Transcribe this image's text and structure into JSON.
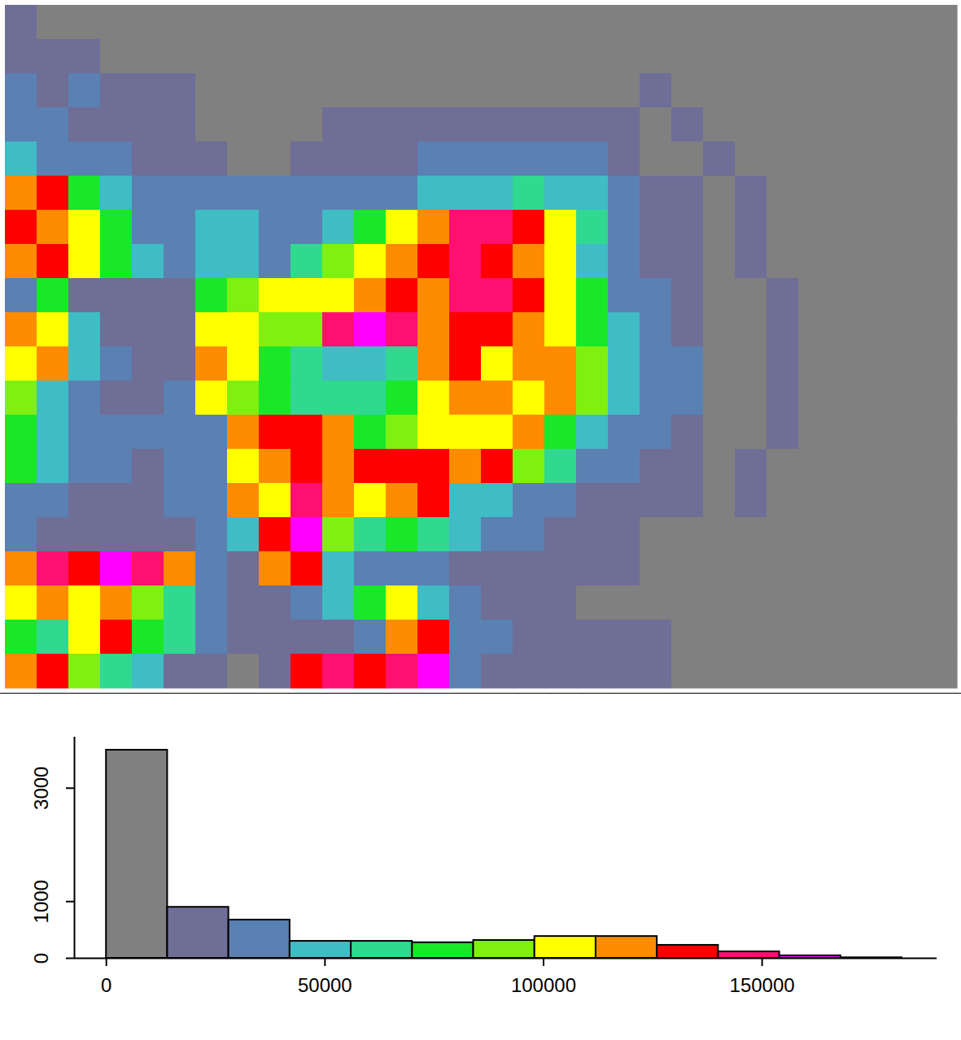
{
  "chart_data": [
    {
      "type": "heatmap",
      "tick_labels": false,
      "cells": [
        [
          21000,
          7000,
          7000,
          7000,
          7000,
          7000,
          7000,
          7000,
          7000,
          7000,
          7000,
          7000,
          7000,
          7000,
          7000,
          7000,
          7000,
          7000,
          7000,
          7000,
          7000,
          7000,
          7000,
          7000,
          7000,
          7000,
          7000,
          7000,
          7000,
          7000
        ],
        [
          21000,
          21000,
          21000,
          7000,
          7000,
          7000,
          7000,
          7000,
          7000,
          7000,
          7000,
          7000,
          7000,
          7000,
          7000,
          7000,
          7000,
          7000,
          7000,
          7000,
          7000,
          7000,
          7000,
          7000,
          7000,
          7000,
          7000,
          7000,
          7000,
          7000
        ],
        [
          35000,
          21000,
          35000,
          21000,
          21000,
          21000,
          7000,
          7000,
          7000,
          7000,
          7000,
          7000,
          7000,
          7000,
          7000,
          7000,
          7000,
          7000,
          7000,
          7000,
          21000,
          7000,
          7000,
          7000,
          7000,
          7000,
          7000,
          7000,
          7000,
          7000
        ],
        [
          35000,
          35000,
          21000,
          21000,
          21000,
          21000,
          7000,
          7000,
          7000,
          7000,
          21000,
          21000,
          21000,
          21000,
          21000,
          21000,
          21000,
          21000,
          21000,
          21000,
          7000,
          21000,
          7000,
          7000,
          7000,
          7000,
          7000,
          7000,
          7000,
          7000
        ],
        [
          49000,
          35000,
          35000,
          35000,
          21000,
          21000,
          21000,
          7000,
          7000,
          21000,
          21000,
          21000,
          21000,
          35000,
          35000,
          35000,
          35000,
          35000,
          35000,
          21000,
          7000,
          7000,
          21000,
          7000,
          7000,
          7000,
          7000,
          7000,
          7000,
          7000
        ],
        [
          119000,
          133000,
          77000,
          49000,
          35000,
          35000,
          35000,
          35000,
          35000,
          35000,
          35000,
          35000,
          35000,
          49000,
          49000,
          49000,
          63000,
          49000,
          49000,
          35000,
          21000,
          21000,
          7000,
          21000,
          7000,
          7000,
          7000,
          7000,
          7000,
          7000
        ],
        [
          133000,
          119000,
          105000,
          77000,
          35000,
          35000,
          49000,
          49000,
          35000,
          35000,
          49000,
          77000,
          105000,
          119000,
          147000,
          147000,
          133000,
          105000,
          63000,
          35000,
          21000,
          21000,
          7000,
          21000,
          7000,
          7000,
          7000,
          7000,
          7000,
          7000
        ],
        [
          119000,
          133000,
          105000,
          77000,
          49000,
          35000,
          49000,
          49000,
          35000,
          63000,
          91000,
          105000,
          119000,
          133000,
          147000,
          133000,
          119000,
          105000,
          49000,
          35000,
          21000,
          21000,
          7000,
          21000,
          7000,
          7000,
          7000,
          7000,
          7000,
          7000
        ],
        [
          35000,
          77000,
          21000,
          21000,
          21000,
          21000,
          77000,
          91000,
          105000,
          105000,
          105000,
          119000,
          133000,
          119000,
          147000,
          147000,
          133000,
          105000,
          77000,
          35000,
          35000,
          21000,
          7000,
          7000,
          21000,
          7000,
          7000,
          7000,
          7000,
          7000
        ],
        [
          119000,
          105000,
          49000,
          21000,
          21000,
          21000,
          105000,
          105000,
          91000,
          91000,
          147000,
          161000,
          147000,
          119000,
          133000,
          133000,
          119000,
          105000,
          77000,
          49000,
          35000,
          21000,
          7000,
          7000,
          21000,
          7000,
          7000,
          7000,
          7000,
          7000
        ],
        [
          105000,
          119000,
          49000,
          35000,
          21000,
          21000,
          119000,
          105000,
          77000,
          63000,
          49000,
          49000,
          63000,
          119000,
          133000,
          105000,
          119000,
          119000,
          91000,
          49000,
          35000,
          35000,
          7000,
          7000,
          21000,
          7000,
          7000,
          7000,
          7000,
          7000
        ],
        [
          91000,
          49000,
          35000,
          21000,
          21000,
          35000,
          105000,
          91000,
          77000,
          63000,
          63000,
          63000,
          77000,
          105000,
          119000,
          119000,
          105000,
          119000,
          91000,
          49000,
          35000,
          35000,
          7000,
          7000,
          21000,
          7000,
          7000,
          7000,
          7000,
          7000
        ],
        [
          77000,
          49000,
          35000,
          35000,
          35000,
          35000,
          35000,
          119000,
          133000,
          133000,
          119000,
          77000,
          91000,
          105000,
          105000,
          105000,
          119000,
          77000,
          49000,
          35000,
          35000,
          21000,
          7000,
          7000,
          21000,
          7000,
          7000,
          7000,
          7000,
          7000
        ],
        [
          77000,
          49000,
          35000,
          35000,
          21000,
          35000,
          35000,
          105000,
          119000,
          133000,
          119000,
          133000,
          133000,
          133000,
          119000,
          133000,
          91000,
          63000,
          35000,
          35000,
          21000,
          21000,
          7000,
          21000,
          7000,
          7000,
          7000,
          7000,
          7000,
          7000
        ],
        [
          35000,
          35000,
          21000,
          21000,
          21000,
          35000,
          35000,
          119000,
          105000,
          147000,
          119000,
          105000,
          119000,
          133000,
          49000,
          49000,
          35000,
          35000,
          21000,
          21000,
          21000,
          21000,
          7000,
          21000,
          7000,
          7000,
          7000,
          7000,
          7000,
          7000
        ],
        [
          35000,
          21000,
          21000,
          21000,
          21000,
          21000,
          35000,
          49000,
          133000,
          161000,
          91000,
          63000,
          77000,
          63000,
          49000,
          35000,
          35000,
          21000,
          21000,
          21000,
          7000,
          7000,
          7000,
          7000,
          7000,
          7000,
          7000,
          7000,
          7000,
          7000
        ],
        [
          119000,
          147000,
          133000,
          161000,
          147000,
          119000,
          35000,
          21000,
          119000,
          133000,
          49000,
          35000,
          35000,
          35000,
          21000,
          21000,
          21000,
          21000,
          21000,
          21000,
          7000,
          7000,
          7000,
          7000,
          7000,
          7000,
          7000,
          7000,
          7000,
          7000
        ],
        [
          105000,
          119000,
          105000,
          119000,
          91000,
          63000,
          35000,
          21000,
          21000,
          35000,
          49000,
          77000,
          105000,
          49000,
          35000,
          21000,
          21000,
          21000,
          7000,
          7000,
          7000,
          7000,
          7000,
          7000,
          7000,
          7000,
          7000,
          7000,
          7000,
          7000
        ],
        [
          77000,
          63000,
          105000,
          133000,
          77000,
          63000,
          35000,
          21000,
          21000,
          21000,
          21000,
          35000,
          119000,
          133000,
          35000,
          35000,
          21000,
          21000,
          21000,
          21000,
          21000,
          7000,
          7000,
          7000,
          7000,
          7000,
          7000,
          7000,
          7000,
          7000
        ],
        [
          119000,
          133000,
          91000,
          63000,
          49000,
          21000,
          21000,
          7000,
          21000,
          133000,
          147000,
          133000,
          147000,
          161000,
          35000,
          21000,
          21000,
          21000,
          21000,
          21000,
          21000,
          7000,
          7000,
          7000,
          7000,
          7000,
          7000,
          7000,
          7000,
          7000
        ]
      ]
    },
    {
      "type": "histogram",
      "bins": [
        0,
        14000,
        28000,
        42000,
        56000,
        70000,
        84000,
        98000,
        112000,
        126000,
        140000,
        154000,
        168000,
        182000
      ],
      "counts": [
        3670,
        900,
        675,
        300,
        300,
        275,
        315,
        385,
        385,
        230,
        115,
        45,
        10
      ],
      "colors": [
        "#808080",
        "#6e6e96",
        "#5b80b2",
        "#40bcc4",
        "#30d890",
        "#18e828",
        "#80f010",
        "#ffff00",
        "#ff8c00",
        "#ff0000",
        "#ff1070",
        "#ff00ff",
        "#8000ff"
      ],
      "xlim": [
        -7300,
        190000
      ],
      "xticks": [
        0,
        50000,
        100000,
        150000
      ],
      "ylim": [
        0,
        3900
      ],
      "yticks": [
        0,
        1000,
        3000
      ]
    }
  ]
}
